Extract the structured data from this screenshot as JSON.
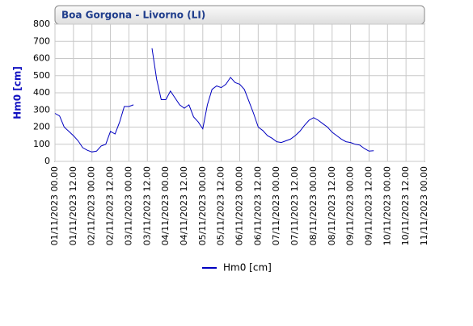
{
  "chart_data": {
    "type": "line",
    "title": "Boa Gorgona - Livorno (LI)",
    "y_label": "Hm0 [cm]",
    "x": [
      "01/11/2023 00.00",
      "01/11/2023 03.00",
      "01/11/2023 06.00",
      "01/11/2023 09.00",
      "01/11/2023 12.00",
      "01/11/2023 15.00",
      "01/11/2023 18.00",
      "01/11/2023 21.00",
      "02/11/2023 00.00",
      "02/11/2023 03.00",
      "02/11/2023 06.00",
      "02/11/2023 09.00",
      "02/11/2023 12.00",
      "02/11/2023 15.00",
      "02/11/2023 18.00",
      "02/11/2023 21.00",
      "03/11/2023 00.00",
      "03/11/2023 03.00",
      "03/11/2023 06.00",
      "03/11/2023 09.00",
      "03/11/2023 12.00",
      "03/11/2023 15.00",
      "03/11/2023 18.00",
      "03/11/2023 21.00",
      "04/11/2023 00.00",
      "04/11/2023 03.00",
      "04/11/2023 06.00",
      "04/11/2023 09.00",
      "04/11/2023 12.00",
      "04/11/2023 15.00",
      "04/11/2023 18.00",
      "04/11/2023 21.00",
      "05/11/2023 00.00",
      "05/11/2023 03.00",
      "05/11/2023 06.00",
      "05/11/2023 09.00",
      "05/11/2023 12.00",
      "05/11/2023 15.00",
      "05/11/2023 18.00",
      "05/11/2023 21.00",
      "06/11/2023 00.00",
      "06/11/2023 03.00",
      "06/11/2023 06.00",
      "06/11/2023 09.00",
      "06/11/2023 12.00",
      "06/11/2023 15.00",
      "06/11/2023 18.00",
      "06/11/2023 21.00",
      "07/11/2023 00.00",
      "07/11/2023 03.00",
      "07/11/2023 06.00",
      "07/11/2023 09.00",
      "07/11/2023 12.00",
      "07/11/2023 15.00",
      "07/11/2023 18.00",
      "07/11/2023 21.00",
      "08/11/2023 00.00",
      "08/11/2023 03.00",
      "08/11/2023 06.00",
      "08/11/2023 09.00",
      "08/11/2023 12.00",
      "08/11/2023 15.00",
      "08/11/2023 18.00",
      "08/11/2023 21.00",
      "09/11/2023 00.00",
      "09/11/2023 03.00",
      "09/11/2023 06.00",
      "09/11/2023 09.00",
      "09/11/2023 12.00",
      "09/11/2023 15.00"
    ],
    "series": [
      {
        "name": "Hm0 [cm]",
        "color": "#0000c0",
        "values": [
          280,
          265,
          200,
          175,
          150,
          120,
          80,
          65,
          55,
          60,
          90,
          100,
          175,
          160,
          230,
          320,
          320,
          330,
          null,
          null,
          null,
          660,
          480,
          360,
          360,
          410,
          370,
          330,
          310,
          330,
          260,
          230,
          190,
          330,
          420,
          440,
          430,
          450,
          490,
          460,
          450,
          420,
          350,
          280,
          200,
          180,
          150,
          135,
          115,
          110,
          120,
          130,
          150,
          175,
          210,
          240,
          255,
          240,
          220,
          200,
          170,
          150,
          130,
          115,
          110,
          100,
          95,
          75,
          60,
          62
        ]
      }
    ],
    "xlim": [
      "01/11/2023 00.00",
      "11/11/2023 00.00"
    ],
    "xticks": [
      "01/11/2023 00.00",
      "01/11/2023 12.00",
      "02/11/2023 00.00",
      "02/11/2023 12.00",
      "03/11/2023 00.00",
      "03/11/2023 12.00",
      "04/11/2023 00.00",
      "04/11/2023 12.00",
      "05/11/2023 00.00",
      "05/11/2023 12.00",
      "06/11/2023 00.00",
      "06/11/2023 12.00",
      "07/11/2023 00.00",
      "07/11/2023 12.00",
      "08/11/2023 00.00",
      "08/11/2023 12.00",
      "09/11/2023 00.00",
      "09/11/2023 12.00",
      "10/11/2023 00.00",
      "10/11/2023 12.00",
      "11/11/2023 00.00"
    ],
    "ylim": [
      0,
      800
    ],
    "yticks": [
      0,
      100,
      200,
      300,
      400,
      500,
      600,
      700,
      800
    ],
    "grid": true
  }
}
